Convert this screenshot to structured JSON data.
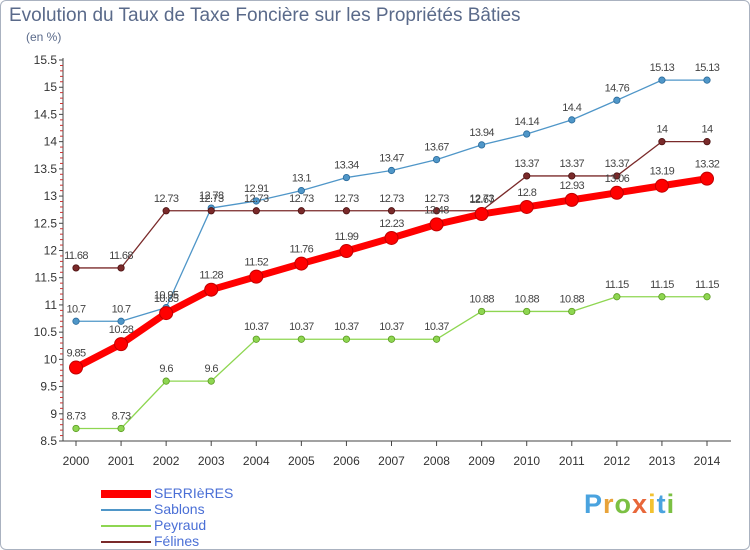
{
  "chart_data": {
    "type": "line",
    "title": "Evolution du Taux de Taxe Foncière sur les Propriétés Bâties",
    "unit": "(en %)",
    "xlabel": "",
    "ylabel": "",
    "x": [
      "2000",
      "2001",
      "2002",
      "2003",
      "2004",
      "2005",
      "2006",
      "2007",
      "2008",
      "2009",
      "2010",
      "2011",
      "2012",
      "2013",
      "2014"
    ],
    "ylim": [
      8.5,
      15.5
    ],
    "yticks": [
      "8.5",
      "9",
      "9.5",
      "10",
      "10.5",
      "11",
      "11.5",
      "12",
      "12.5",
      "13",
      "13.5",
      "14",
      "14.5",
      "15",
      "15.5"
    ],
    "grid": false,
    "legend_position": "bottom-left",
    "series": [
      {
        "name": "SERRIèRES",
        "color": "#ff0000",
        "values": [
          9.85,
          10.28,
          10.85,
          11.28,
          11.52,
          11.76,
          11.99,
          12.23,
          12.48,
          12.67,
          12.8,
          12.93,
          13.06,
          13.19,
          13.32
        ],
        "labels": [
          "9.85",
          "10.28",
          "10.85",
          "11.28",
          "11.52",
          "11.76",
          "11.99",
          "12.23",
          "12.48",
          "12.67",
          "12.8",
          "12.93",
          "13.06",
          "13.19",
          "13.32"
        ]
      },
      {
        "name": "Sablons",
        "color": "#4f96c8",
        "values": [
          10.7,
          10.7,
          10.95,
          12.78,
          12.91,
          13.1,
          13.34,
          13.47,
          13.67,
          13.94,
          14.14,
          14.4,
          14.76,
          15.13,
          15.13
        ],
        "labels": [
          "10.7",
          "10.7",
          "10.95",
          "12.78",
          "12.91",
          "13.1",
          "13.34",
          "13.47",
          "13.67",
          "13.94",
          "14.14",
          "14.4",
          "14.76",
          "15.13",
          "15.13"
        ]
      },
      {
        "name": "Peyraud",
        "color": "#8ed651",
        "values": [
          8.73,
          8.73,
          9.6,
          9.6,
          10.37,
          10.37,
          10.37,
          10.37,
          10.37,
          10.88,
          10.88,
          10.88,
          11.15,
          11.15,
          11.15
        ],
        "labels": [
          "8.73",
          "8.73",
          "9.6",
          "9.6",
          "10.37",
          "10.37",
          "10.37",
          "10.37",
          "10.37",
          "10.88",
          "10.88",
          "10.88",
          "11.15",
          "11.15",
          "11.15"
        ]
      },
      {
        "name": "Félines",
        "color": "#7a2a2a",
        "values": [
          11.68,
          11.68,
          12.73,
          12.73,
          12.73,
          12.73,
          12.73,
          12.73,
          12.73,
          12.73,
          13.37,
          13.37,
          13.37,
          14,
          14
        ],
        "labels": [
          "11.68",
          "11.68",
          "12.73",
          "12.73",
          "12.73",
          "12.73",
          "12.73",
          "12.73",
          "12.73",
          "12.73",
          "13.37",
          "13.37",
          "13.37",
          "14",
          "14"
        ]
      }
    ]
  },
  "branding": {
    "logo_text": "Proxiti",
    "logo_colors": [
      "#4aa3df",
      "#e8a33a",
      "#7bc043",
      "#e8673a",
      "#f2c230",
      "#4aa3df",
      "#7bc043"
    ]
  }
}
